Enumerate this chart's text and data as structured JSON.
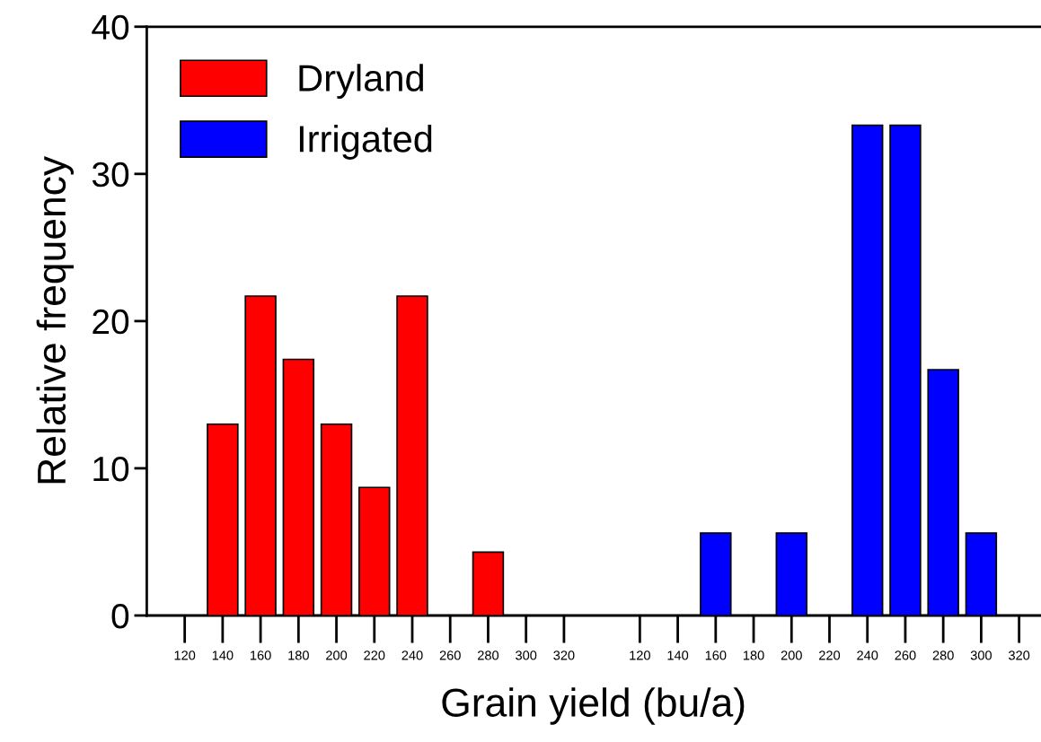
{
  "chart_data": {
    "type": "bar",
    "xlabel": "Grain yield (bu/a)",
    "ylabel": "Relative frequency",
    "categories": [
      "120",
      "140",
      "160",
      "180",
      "200",
      "220",
      "240",
      "260",
      "280",
      "300",
      "320",
      null,
      "120",
      "140",
      "160",
      "180",
      "200",
      "220",
      "240",
      "260",
      "280",
      "300",
      "320"
    ],
    "series": [
      {
        "name": "Dryland",
        "color": "#ff0000",
        "values": [
          null,
          13.0,
          21.7,
          17.4,
          13.0,
          8.7,
          21.7,
          null,
          4.3,
          null,
          null,
          null,
          null,
          null,
          null,
          null,
          null,
          null,
          null,
          null,
          null,
          null,
          null
        ]
      },
      {
        "name": "Irrigated",
        "color": "#0000ff",
        "values": [
          null,
          null,
          null,
          null,
          null,
          null,
          null,
          null,
          null,
          null,
          null,
          null,
          null,
          null,
          5.6,
          null,
          5.6,
          null,
          33.3,
          33.3,
          16.7,
          5.6,
          null
        ]
      }
    ],
    "ylim": [
      0,
      40
    ],
    "yticks": [
      0,
      10,
      20,
      30,
      40
    ],
    "grid": false,
    "legend": "top left"
  }
}
